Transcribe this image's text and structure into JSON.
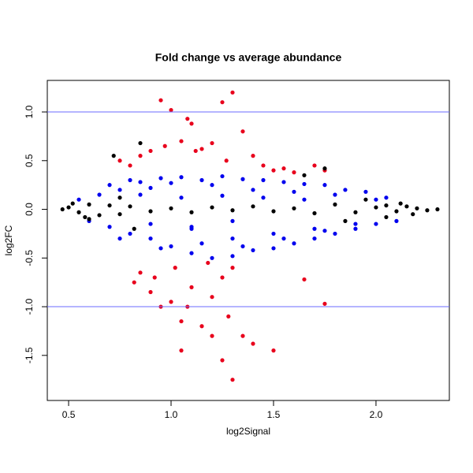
{
  "chart_data": {
    "type": "scatter",
    "title": "Fold change vs average abundance",
    "x_label": "log2Signal",
    "y_label": "log2FC",
    "xlim": [
      0.396,
      2.358
    ],
    "ylim": [
      -1.963,
      1.324
    ],
    "xticks": [
      0.5,
      {
        "value": 1.0,
        "label": "1.0"
      },
      1.5,
      {
        "value": 2.0,
        "label": "2.0"
      }
    ],
    "yticks": [
      -1.5,
      {
        "value": -1.0,
        "label": "-1.0"
      },
      -0.5,
      {
        "value": 0.0,
        "label": "0.0"
      },
      0.5,
      {
        "value": 1.0,
        "label": "1.0"
      }
    ],
    "hlines": [
      1.0,
      -1.0
    ],
    "hline_color": "#6b6bff",
    "series": [
      {
        "color": "#e8001c",
        "x": [
          0.75,
          0.8,
          0.85,
          0.9,
          0.95,
          0.97,
          1.0,
          1.05,
          1.08,
          1.1,
          1.12,
          1.15,
          1.2,
          1.25,
          1.27,
          1.3,
          1.35,
          1.4,
          1.45,
          1.5,
          1.55,
          1.6,
          1.7,
          1.75,
          0.85,
          0.9,
          0.95,
          1.0,
          1.05,
          1.1,
          1.15,
          1.2,
          1.25,
          1.28,
          1.3,
          1.35,
          1.4,
          1.5,
          1.65,
          1.75,
          0.92,
          1.05,
          1.08,
          1.2,
          1.25,
          1.3,
          0.82,
          1.02,
          1.18
        ],
        "values": [
          0.5,
          0.45,
          0.55,
          0.6,
          1.12,
          0.65,
          1.02,
          0.7,
          0.93,
          0.88,
          0.6,
          0.62,
          0.68,
          1.1,
          0.5,
          1.2,
          0.8,
          0.55,
          0.45,
          0.4,
          0.42,
          0.38,
          0.45,
          0.4,
          -0.65,
          -0.85,
          -1.0,
          -0.95,
          -1.15,
          -0.8,
          -1.2,
          -1.3,
          -1.55,
          -1.1,
          -1.75,
          -1.3,
          -1.38,
          -1.45,
          -0.72,
          -0.97,
          -0.7,
          -1.45,
          -1.0,
          -0.9,
          -0.7,
          -0.6,
          -0.75,
          -0.6,
          -0.55
        ]
      },
      {
        "color": "#0000ee",
        "x": [
          0.55,
          0.6,
          0.65,
          0.7,
          0.75,
          0.8,
          0.85,
          0.9,
          0.95,
          1.0,
          1.05,
          1.1,
          1.15,
          1.2,
          1.25,
          1.3,
          1.35,
          1.4,
          1.45,
          1.5,
          1.55,
          1.6,
          1.65,
          1.7,
          1.75,
          1.8,
          1.85,
          1.9,
          1.95,
          2.0,
          2.05,
          2.1,
          0.7,
          0.8,
          0.9,
          1.0,
          1.1,
          1.2,
          1.3,
          1.4,
          1.5,
          1.6,
          1.7,
          1.8,
          1.9,
          2.0,
          0.75,
          0.95,
          1.15,
          1.35,
          1.55,
          1.75,
          0.85,
          1.05,
          1.25,
          1.45,
          1.65,
          0.9,
          1.1,
          1.3
        ],
        "values": [
          0.1,
          -0.12,
          0.15,
          -0.18,
          0.2,
          -0.25,
          0.28,
          -0.3,
          0.32,
          -0.38,
          0.33,
          -0.45,
          0.3,
          -0.5,
          0.34,
          -0.48,
          0.31,
          -0.42,
          0.3,
          -0.4,
          0.28,
          -0.35,
          0.26,
          -0.3,
          0.25,
          -0.25,
          0.2,
          -0.2,
          0.18,
          -0.15,
          0.12,
          -0.12,
          0.25,
          0.3,
          0.22,
          0.27,
          -0.2,
          0.25,
          -0.3,
          0.2,
          -0.25,
          0.18,
          -0.2,
          0.15,
          -0.15,
          0.1,
          -0.3,
          -0.4,
          -0.35,
          -0.38,
          -0.3,
          -0.22,
          0.15,
          0.12,
          0.14,
          0.12,
          0.1,
          -0.15,
          -0.18,
          -0.12
        ]
      },
      {
        "color": "#000000",
        "x": [
          0.47,
          0.5,
          0.55,
          0.6,
          0.65,
          0.7,
          0.75,
          0.8,
          0.9,
          1.0,
          1.1,
          1.2,
          1.3,
          1.4,
          1.5,
          1.6,
          1.7,
          1.8,
          1.9,
          2.0,
          2.05,
          2.1,
          2.15,
          2.2,
          2.25,
          2.3,
          0.6,
          0.75,
          0.85,
          1.85,
          1.95,
          2.05,
          2.12,
          2.18,
          0.72,
          0.82,
          1.65,
          1.75,
          0.52,
          0.58
        ],
        "values": [
          0.0,
          0.02,
          -0.03,
          0.05,
          -0.06,
          0.04,
          -0.05,
          0.03,
          -0.02,
          0.01,
          -0.03,
          0.02,
          -0.01,
          0.03,
          -0.02,
          0.01,
          -0.04,
          0.05,
          -0.03,
          0.02,
          0.04,
          -0.02,
          0.03,
          0.01,
          -0.01,
          0.0,
          -0.1,
          0.12,
          0.68,
          -0.12,
          0.1,
          -0.08,
          0.06,
          -0.05,
          0.55,
          -0.2,
          0.35,
          0.42,
          0.06,
          -0.08
        ]
      }
    ]
  }
}
